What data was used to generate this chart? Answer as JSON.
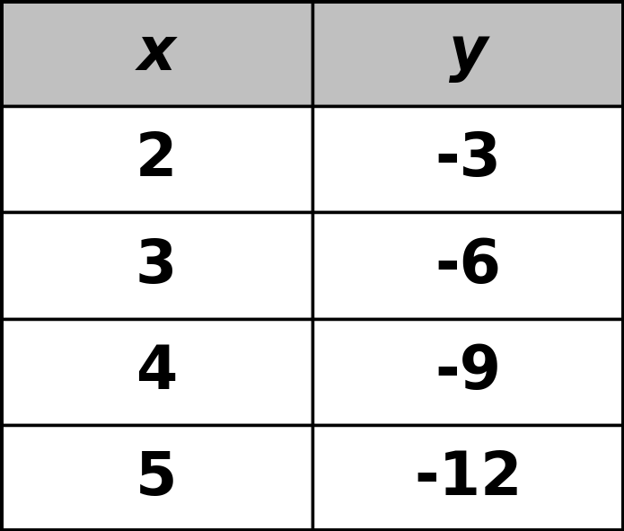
{
  "header": [
    "x",
    "y"
  ],
  "rows": [
    [
      "2",
      "-3"
    ],
    [
      "3",
      "-6"
    ],
    [
      "4",
      "-9"
    ],
    [
      "5",
      "-12"
    ]
  ],
  "header_bg": "#C0C0C0",
  "row_bg": "#FFFFFF",
  "border_color": "#000000",
  "text_color": "#000000",
  "header_font_size": 48,
  "cell_font_size": 48,
  "fig_bg": "#FFFFFF",
  "border_width": 2.5
}
